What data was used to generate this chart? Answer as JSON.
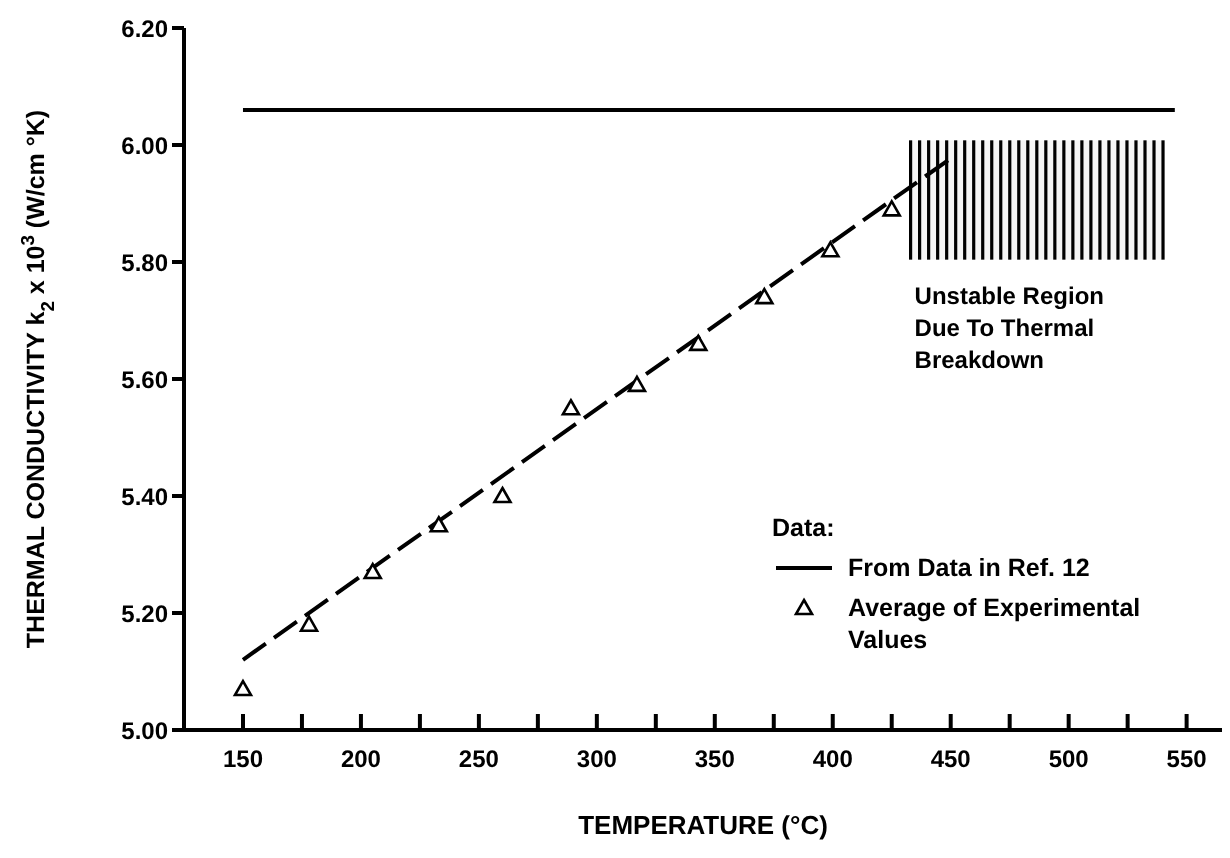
{
  "chart_data": {
    "type": "scatter",
    "xlabel": "TEMPERATURE (°C)",
    "ylabel": "THERMAL CONDUCTIVITY k$_{2}$ x 10$^{3}$ (W/cm °K)",
    "legend_title": "Data:",
    "legend": "bottom right",
    "xlim": [
      125,
      565
    ],
    "ylim": [
      5,
      6.2
    ],
    "xticks": [
      150,
      {
        "value": 175,
        "label": null
      },
      200,
      {
        "value": 225,
        "label": null
      },
      250,
      {
        "value": 275,
        "label": null
      },
      300,
      {
        "value": 325,
        "label": null
      },
      350,
      {
        "value": 375,
        "label": null
      },
      400,
      {
        "value": 425,
        "label": null
      },
      450,
      {
        "value": 475,
        "label": null
      },
      500,
      {
        "value": 525,
        "label": null
      },
      550
    ],
    "yticks": [
      {
        "value": 5,
        "label": "5.00"
      },
      {
        "value": 5.2,
        "label": "5.20"
      },
      {
        "value": 5.4,
        "label": "5.40"
      },
      {
        "value": 5.6,
        "label": "5.60"
      },
      {
        "value": 5.8,
        "label": "5.80"
      },
      {
        "value": 6,
        "label": "6.00"
      },
      {
        "value": 6.2,
        "label": "6.20"
      }
    ],
    "bands": [
      {
        "axis": "x",
        "from": 433,
        "to": 540,
        "label": "Unstable Region Due To Thermal Breakdown",
        "color": "#000000"
      }
    ],
    "series": [
      {
        "type": "line",
        "name": "From Data in Ref. 12",
        "color": "#000000",
        "x": [
          150,
          545
        ],
        "values": [
          6.06,
          6.06
        ],
        "line_style": "solid",
        "marker": "none"
      },
      {
        "type": "line",
        "color": "#000000",
        "x": [
          150,
          451
        ],
        "values": [
          5.12,
          5.98
        ],
        "line_style": "dashed",
        "marker": "none"
      },
      {
        "name": "Average of Experimental Values",
        "color": "#000000",
        "marker": "triangle",
        "x": [
          150,
          178,
          205,
          233,
          260,
          289,
          317,
          343,
          371,
          399,
          425
        ],
        "values": [
          5.07,
          5.18,
          5.27,
          5.35,
          5.4,
          5.55,
          5.59,
          5.66,
          5.74,
          5.82,
          5.89
        ]
      }
    ]
  }
}
